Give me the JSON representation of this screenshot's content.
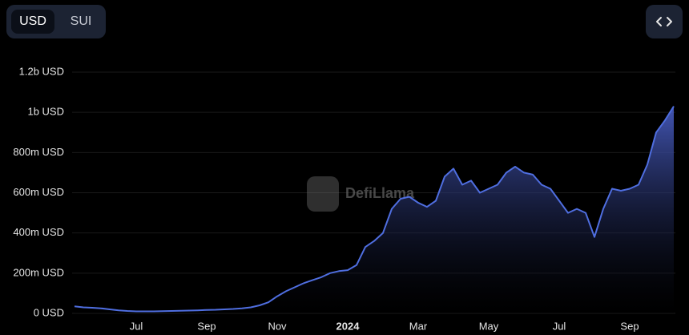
{
  "toggle": {
    "options": [
      "USD",
      "SUI"
    ]
  },
  "chart_data": {
    "type": "area",
    "watermark": "DefiLlama",
    "categories": [
      null,
      null,
      null,
      null,
      null,
      null,
      null,
      "Jul",
      null,
      null,
      null,
      null,
      null,
      null,
      null,
      "Sep",
      null,
      null,
      null,
      null,
      null,
      null,
      null,
      "Nov",
      null,
      null,
      null,
      null,
      null,
      null,
      null,
      "2024",
      null,
      null,
      null,
      null,
      null,
      null,
      null,
      "Mar",
      null,
      null,
      null,
      null,
      null,
      null,
      null,
      "May",
      null,
      null,
      null,
      null,
      null,
      null,
      null,
      "Jul",
      null,
      null,
      null,
      null,
      null,
      null,
      null,
      "Sep",
      null,
      null,
      null,
      null,
      null
    ],
    "values": [
      35000000,
      30000000,
      28000000,
      25000000,
      20000000,
      15000000,
      12000000,
      10000000,
      10000000,
      10000000,
      11000000,
      12000000,
      13000000,
      14000000,
      15000000,
      17000000,
      18000000,
      20000000,
      22000000,
      25000000,
      30000000,
      40000000,
      55000000,
      85000000,
      110000000,
      130000000,
      150000000,
      165000000,
      180000000,
      200000000,
      210000000,
      215000000,
      240000000,
      330000000,
      360000000,
      400000000,
      520000000,
      570000000,
      580000000,
      550000000,
      530000000,
      560000000,
      680000000,
      720000000,
      640000000,
      660000000,
      600000000,
      620000000,
      640000000,
      700000000,
      730000000,
      700000000,
      690000000,
      640000000,
      620000000,
      560000000,
      500000000,
      520000000,
      500000000,
      380000000,
      520000000,
      620000000,
      610000000,
      620000000,
      640000000,
      740000000,
      900000000,
      960000000,
      1030000000
    ],
    "color": "#4f6ee0",
    "ylim": [
      0,
      1200000000
    ],
    "yticks": [
      {
        "value": 0,
        "label": "0 USD"
      },
      {
        "value": 200000000,
        "label": "200m USD"
      },
      {
        "value": 400000000,
        "label": "400m USD"
      },
      {
        "value": 600000000,
        "label": "600m USD"
      },
      {
        "value": 800000000,
        "label": "800m USD"
      },
      {
        "value": 1000000000,
        "label": "1b USD"
      },
      {
        "value": 1200000000,
        "label": "1.2b USD"
      }
    ],
    "grid": true
  }
}
